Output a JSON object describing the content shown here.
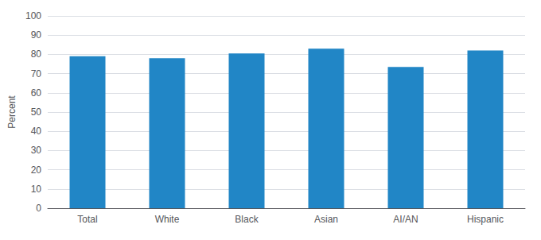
{
  "chart_data": {
    "type": "bar",
    "categories": [
      "Total",
      "White",
      "Black",
      "Asian",
      "AI/AN",
      "Hispanic"
    ],
    "values": [
      79.0,
      78.0,
      80.5,
      83.0,
      73.5,
      82.0
    ],
    "color": "#2186c6",
    "ylabel": "Percent",
    "ylim": [
      0,
      100
    ],
    "yticks": [
      0,
      10,
      20,
      30,
      40,
      50,
      60,
      70,
      80,
      90,
      100
    ],
    "grid": true
  }
}
